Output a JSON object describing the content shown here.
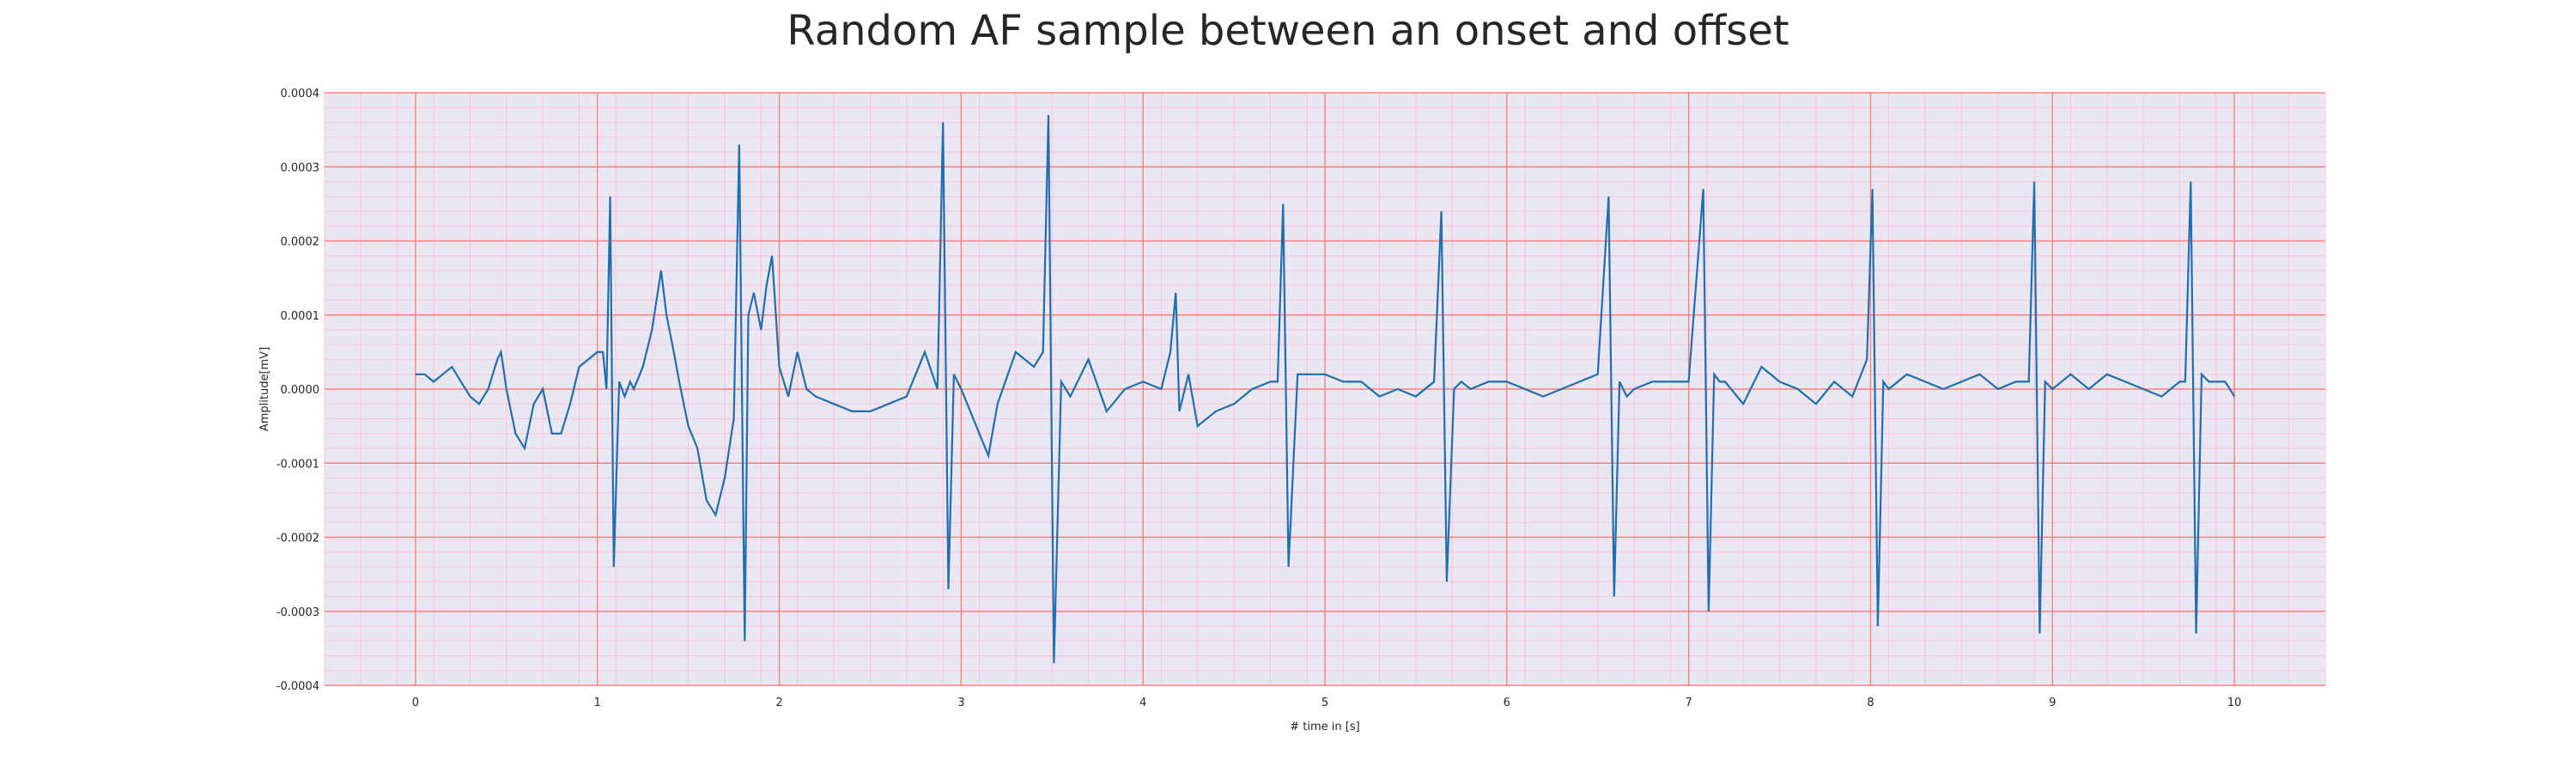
{
  "chart_data": {
    "type": "line",
    "title": "Random AF sample between an onset and offset",
    "xlabel": "# time in [s]",
    "ylabel": "Amplitude[mV]",
    "xlim": [
      -0.5,
      10.5
    ],
    "ylim": [
      -0.0004,
      0.0004
    ],
    "x_ticks": [
      "0",
      "1",
      "2",
      "3",
      "4",
      "5",
      "6",
      "7",
      "8",
      "9",
      "10"
    ],
    "y_ticks": [
      "-0.0004",
      "-0.0003",
      "-0.0002",
      "-0.0001",
      "0.0000",
      "0.0001",
      "0.0002",
      "0.0003",
      "0.0004"
    ],
    "grid": true,
    "major_grid_color": "#ff7f7f",
    "minor_grid_color": "#f7c6d6",
    "background_color": "#eae6f2",
    "line_color": "#1f6fae",
    "series": [
      {
        "x": [
          0.0,
          0.05,
          0.1,
          0.15,
          0.2,
          0.25,
          0.3,
          0.35,
          0.4,
          0.45,
          0.47,
          0.5,
          0.55,
          0.6,
          0.65,
          0.7,
          0.75,
          0.8,
          0.85,
          0.9,
          0.95,
          1.0,
          1.03,
          1.05,
          1.07,
          1.09,
          1.12,
          1.15,
          1.18,
          1.2,
          1.25,
          1.3,
          1.35,
          1.38,
          1.42,
          1.45,
          1.5,
          1.55,
          1.6,
          1.65,
          1.7,
          1.75,
          1.78,
          1.81,
          1.83,
          1.86,
          1.9,
          1.93,
          1.96,
          2.0,
          2.05,
          2.1,
          2.15,
          2.2,
          2.3,
          2.4,
          2.5,
          2.6,
          2.7,
          2.8,
          2.87,
          2.9,
          2.93,
          2.96,
          3.0,
          3.05,
          3.1,
          3.15,
          3.2,
          3.3,
          3.4,
          3.45,
          3.48,
          3.51,
          3.55,
          3.6,
          3.7,
          3.8,
          3.9,
          4.0,
          4.1,
          4.15,
          4.18,
          4.2,
          4.25,
          4.3,
          4.4,
          4.5,
          4.6,
          4.7,
          4.74,
          4.77,
          4.8,
          4.85,
          4.9,
          5.0,
          5.1,
          5.2,
          5.3,
          5.4,
          5.5,
          5.6,
          5.64,
          5.67,
          5.71,
          5.75,
          5.8,
          5.9,
          6.0,
          6.1,
          6.2,
          6.3,
          6.4,
          6.5,
          6.56,
          6.59,
          6.62,
          6.66,
          6.7,
          6.8,
          6.9,
          7.0,
          7.08,
          7.11,
          7.14,
          7.17,
          7.2,
          7.3,
          7.4,
          7.5,
          7.6,
          7.7,
          7.8,
          7.9,
          7.98,
          8.01,
          8.04,
          8.07,
          8.1,
          8.2,
          8.3,
          8.4,
          8.5,
          8.6,
          8.7,
          8.8,
          8.87,
          8.9,
          8.93,
          8.96,
          9.0,
          9.1,
          9.2,
          9.3,
          9.4,
          9.5,
          9.6,
          9.7,
          9.73,
          9.76,
          9.79,
          9.82,
          9.86,
          9.9,
          9.95,
          10.0
        ],
        "y": [
          2e-05,
          2e-05,
          1e-05,
          2e-05,
          3e-05,
          1e-05,
          -1e-05,
          -2e-05,
          0.0,
          4e-05,
          5e-05,
          0.0,
          -6e-05,
          -8e-05,
          -2e-05,
          0.0,
          -6e-05,
          -6e-05,
          -2e-05,
          3e-05,
          4e-05,
          5e-05,
          5e-05,
          0.0,
          0.00026,
          -0.00024,
          1e-05,
          -1e-05,
          1e-05,
          0.0,
          3e-05,
          8e-05,
          0.00016,
          0.0001,
          5e-05,
          1e-05,
          -5e-05,
          -8e-05,
          -0.00015,
          -0.00017,
          -0.00012,
          -4e-05,
          0.00033,
          -0.00034,
          0.0001,
          0.00013,
          8e-05,
          0.00014,
          0.00018,
          3e-05,
          -1e-05,
          5e-05,
          0.0,
          -1e-05,
          -2e-05,
          -3e-05,
          -3e-05,
          -2e-05,
          -1e-05,
          5e-05,
          0.0,
          0.00036,
          -0.00027,
          2e-05,
          0.0,
          -3e-05,
          -6e-05,
          -9e-05,
          -2e-05,
          5e-05,
          3e-05,
          5e-05,
          0.00037,
          -0.00037,
          1e-05,
          -1e-05,
          4e-05,
          -3e-05,
          0.0,
          1e-05,
          0.0,
          5e-05,
          0.00013,
          -3e-05,
          2e-05,
          -5e-05,
          -3e-05,
          -2e-05,
          0.0,
          1e-05,
          1e-05,
          0.00025,
          -0.00024,
          2e-05,
          2e-05,
          2e-05,
          1e-05,
          1e-05,
          -1e-05,
          0.0,
          -1e-05,
          1e-05,
          0.00024,
          -0.00026,
          0.0,
          1e-05,
          0.0,
          1e-05,
          1e-05,
          0.0,
          -1e-05,
          0.0,
          1e-05,
          2e-05,
          0.00026,
          -0.00028,
          1e-05,
          -1e-05,
          0.0,
          1e-05,
          1e-05,
          1e-05,
          0.00027,
          -0.0003,
          2e-05,
          1e-05,
          1e-05,
          -2e-05,
          3e-05,
          1e-05,
          0.0,
          -2e-05,
          1e-05,
          -1e-05,
          4e-05,
          0.00027,
          -0.00032,
          1e-05,
          0.0,
          2e-05,
          1e-05,
          0.0,
          1e-05,
          2e-05,
          0.0,
          1e-05,
          1e-05,
          0.00028,
          -0.00033,
          1e-05,
          0.0,
          2e-05,
          0.0,
          2e-05,
          1e-05,
          0.0,
          -1e-05,
          1e-05,
          1e-05,
          0.00028,
          -0.00033,
          2e-05,
          1e-05,
          1e-05,
          1e-05,
          -1e-05
        ]
      }
    ]
  }
}
